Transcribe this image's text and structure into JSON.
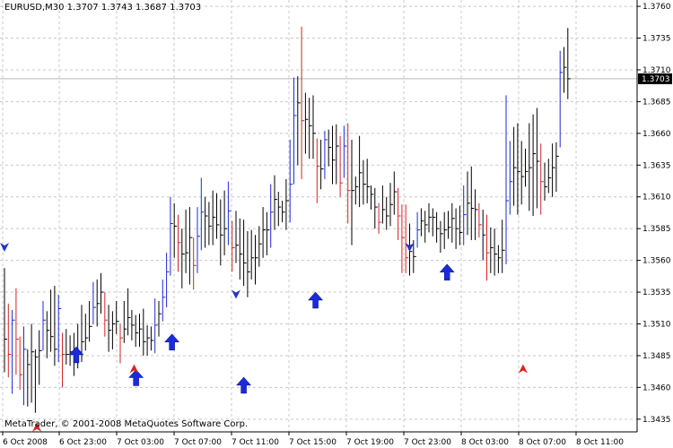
{
  "window": {
    "title": "EURUSD,M30  1.3707 1.3743 1.3687 1.3703",
    "copyright": "MetaTrader, © 2001-2008 MetaQuotes Software Corp."
  },
  "colors": {
    "background": "#ffffff",
    "grid": "#c8c8c8",
    "bar_default": "#000000",
    "bar_bull": "#1a2bd8",
    "bar_bear": "#d42424",
    "arrow_up_big": "#1a2bd8",
    "signal_blue": "#2233cc",
    "signal_red": "#dd2222",
    "price_line": "#b8b8b8",
    "price_tag_bg": "#000000",
    "price_tag_text": "#ffffff"
  },
  "chart_data": {
    "type": "ohlc",
    "symbol": "EURUSD",
    "timeframe": "M30",
    "ylim": [
      1.3425,
      1.3765
    ],
    "y_ticks": [
      "1.3760",
      "1.3735",
      "1.3710",
      "1.3685",
      "1.3660",
      "1.3635",
      "1.3610",
      "1.3585",
      "1.3560",
      "1.3535",
      "1.3510",
      "1.3485",
      "1.3460",
      "1.3435"
    ],
    "x_tick_labels": [
      "6 Oct 2008",
      "6 Oct 23:00",
      "7 Oct 03:00",
      "7 Oct 07:00",
      "7 Oct 11:00",
      "7 Oct 15:00",
      "7 Oct 19:00",
      "7 Oct 23:00",
      "8 Oct 03:00",
      "8 Oct 07:00",
      "8 Oct 11:00"
    ],
    "current_price": "1.3703",
    "bars": [
      {
        "h": 1.3554,
        "l": 1.3472,
        "c": 1.3498
      },
      {
        "h": 1.3526,
        "l": 1.3468,
        "c": 1.3486
      },
      {
        "h": 1.3521,
        "l": 1.3455,
        "c": 1.3513
      },
      {
        "h": 1.3538,
        "l": 1.347,
        "c": 1.3498
      },
      {
        "h": 1.35,
        "l": 1.3458,
        "c": 1.347
      },
      {
        "h": 1.3508,
        "l": 1.3446,
        "c": 1.349
      },
      {
        "h": 1.349,
        "l": 1.3445,
        "c": 1.3478
      },
      {
        "h": 1.351,
        "l": 1.3448,
        "c": 1.3488
      },
      {
        "h": 1.349,
        "l": 1.344,
        "c": 1.3484
      },
      {
        "h": 1.3505,
        "l": 1.3462,
        "c": 1.3489
      },
      {
        "h": 1.3528,
        "l": 1.3489,
        "c": 1.3513
      },
      {
        "h": 1.352,
        "l": 1.3483,
        "c": 1.3505
      },
      {
        "h": 1.3537,
        "l": 1.3488,
        "c": 1.35
      },
      {
        "h": 1.354,
        "l": 1.3477,
        "c": 1.349
      },
      {
        "h": 1.3533,
        "l": 1.348,
        "c": 1.3522
      },
      {
        "h": 1.3503,
        "l": 1.346,
        "c": 1.3486
      },
      {
        "h": 1.3506,
        "l": 1.3478,
        "c": 1.3486
      },
      {
        "h": 1.3501,
        "l": 1.3477,
        "c": 1.3488
      },
      {
        "h": 1.3503,
        "l": 1.3469,
        "c": 1.3489
      },
      {
        "h": 1.351,
        "l": 1.3475,
        "c": 1.3488
      },
      {
        "h": 1.3525,
        "l": 1.348,
        "c": 1.3496
      },
      {
        "h": 1.3518,
        "l": 1.3489,
        "c": 1.3499
      },
      {
        "h": 1.3528,
        "l": 1.3496,
        "c": 1.3508
      },
      {
        "h": 1.3543,
        "l": 1.351,
        "c": 1.3523
      },
      {
        "h": 1.3545,
        "l": 1.3508,
        "c": 1.3526
      },
      {
        "h": 1.355,
        "l": 1.3518,
        "c": 1.3535
      },
      {
        "h": 1.3535,
        "l": 1.35,
        "c": 1.3513
      },
      {
        "h": 1.3525,
        "l": 1.3488,
        "c": 1.3505
      },
      {
        "h": 1.352,
        "l": 1.349,
        "c": 1.351
      },
      {
        "h": 1.3528,
        "l": 1.3502,
        "c": 1.3512
      },
      {
        "h": 1.351,
        "l": 1.3479,
        "c": 1.3499
      },
      {
        "h": 1.3528,
        "l": 1.3495,
        "c": 1.3506
      },
      {
        "h": 1.3538,
        "l": 1.3501,
        "c": 1.3515
      },
      {
        "h": 1.3521,
        "l": 1.3497,
        "c": 1.3509
      },
      {
        "h": 1.3517,
        "l": 1.3492,
        "c": 1.3503
      },
      {
        "h": 1.3518,
        "l": 1.3492,
        "c": 1.3506
      },
      {
        "h": 1.3522,
        "l": 1.3485,
        "c": 1.3496
      },
      {
        "h": 1.3509,
        "l": 1.3485,
        "c": 1.3499
      },
      {
        "h": 1.3508,
        "l": 1.3489,
        "c": 1.3497
      },
      {
        "h": 1.353,
        "l": 1.3487,
        "c": 1.3509
      },
      {
        "h": 1.3528,
        "l": 1.35,
        "c": 1.3518
      },
      {
        "h": 1.3545,
        "l": 1.3512,
        "c": 1.3531
      },
      {
        "h": 1.3566,
        "l": 1.3523,
        "c": 1.3551
      },
      {
        "h": 1.361,
        "l": 1.3548,
        "c": 1.3589
      },
      {
        "h": 1.3605,
        "l": 1.3562,
        "c": 1.3587
      },
      {
        "h": 1.3596,
        "l": 1.3551,
        "c": 1.3574
      },
      {
        "h": 1.3585,
        "l": 1.3538,
        "c": 1.3565
      },
      {
        "h": 1.36,
        "l": 1.355,
        "c": 1.3566
      },
      {
        "h": 1.3602,
        "l": 1.3541,
        "c": 1.3578
      },
      {
        "h": 1.3578,
        "l": 1.3537,
        "c": 1.3556
      },
      {
        "h": 1.3602,
        "l": 1.355,
        "c": 1.3579
      },
      {
        "h": 1.3625,
        "l": 1.3568,
        "c": 1.3598
      },
      {
        "h": 1.361,
        "l": 1.357,
        "c": 1.3595
      },
      {
        "h": 1.3606,
        "l": 1.3572,
        "c": 1.3587
      },
      {
        "h": 1.3615,
        "l": 1.3572,
        "c": 1.3594
      },
      {
        "h": 1.3613,
        "l": 1.3577,
        "c": 1.3588
      },
      {
        "h": 1.3608,
        "l": 1.3556,
        "c": 1.358
      },
      {
        "h": 1.3615,
        "l": 1.3564,
        "c": 1.3585
      },
      {
        "h": 1.3622,
        "l": 1.3572,
        "c": 1.3599
      },
      {
        "h": 1.3591,
        "l": 1.3551,
        "c": 1.357
      },
      {
        "h": 1.3599,
        "l": 1.3558,
        "c": 1.3572
      },
      {
        "h": 1.3593,
        "l": 1.3545,
        "c": 1.3565
      },
      {
        "h": 1.3592,
        "l": 1.354,
        "c": 1.3558
      },
      {
        "h": 1.3583,
        "l": 1.3531,
        "c": 1.3551
      },
      {
        "h": 1.3584,
        "l": 1.3545,
        "c": 1.3562
      },
      {
        "h": 1.358,
        "l": 1.3541,
        "c": 1.3562
      },
      {
        "h": 1.3587,
        "l": 1.3555,
        "c": 1.3573
      },
      {
        "h": 1.3602,
        "l": 1.3562,
        "c": 1.3584
      },
      {
        "h": 1.3598,
        "l": 1.3564,
        "c": 1.3584
      },
      {
        "h": 1.362,
        "l": 1.357,
        "c": 1.3598
      },
      {
        "h": 1.3627,
        "l": 1.3584,
        "c": 1.3608
      },
      {
        "h": 1.3614,
        "l": 1.3587,
        "c": 1.3602
      },
      {
        "h": 1.3607,
        "l": 1.359,
        "c": 1.3598
      },
      {
        "h": 1.3624,
        "l": 1.3584,
        "c": 1.3607
      },
      {
        "h": 1.3655,
        "l": 1.359,
        "c": 1.362
      },
      {
        "h": 1.3704,
        "l": 1.362,
        "c": 1.3674
      },
      {
        "h": 1.3705,
        "l": 1.3635,
        "c": 1.3684
      },
      {
        "h": 1.3744,
        "l": 1.3624,
        "c": 1.367
      },
      {
        "h": 1.3692,
        "l": 1.3644,
        "c": 1.3671
      },
      {
        "h": 1.3688,
        "l": 1.364,
        "c": 1.3666
      },
      {
        "h": 1.369,
        "l": 1.364,
        "c": 1.366
      },
      {
        "h": 1.3656,
        "l": 1.3605,
        "c": 1.3634
      },
      {
        "h": 1.3655,
        "l": 1.3616,
        "c": 1.3632
      },
      {
        "h": 1.3662,
        "l": 1.3624,
        "c": 1.3655
      },
      {
        "h": 1.3663,
        "l": 1.3634,
        "c": 1.3649
      },
      {
        "h": 1.3666,
        "l": 1.362,
        "c": 1.3639
      },
      {
        "h": 1.3667,
        "l": 1.362,
        "c": 1.365
      },
      {
        "h": 1.3658,
        "l": 1.361,
        "c": 1.3621
      },
      {
        "h": 1.3666,
        "l": 1.3625,
        "c": 1.365
      },
      {
        "h": 1.3668,
        "l": 1.3589,
        "c": 1.3615
      },
      {
        "h": 1.3655,
        "l": 1.3572,
        "c": 1.3615
      },
      {
        "h": 1.3626,
        "l": 1.3604,
        "c": 1.3618
      },
      {
        "h": 1.3658,
        "l": 1.3602,
        "c": 1.3629
      },
      {
        "h": 1.3639,
        "l": 1.3604,
        "c": 1.362
      },
      {
        "h": 1.364,
        "l": 1.3605,
        "c": 1.3618
      },
      {
        "h": 1.3619,
        "l": 1.36,
        "c": 1.3612
      },
      {
        "h": 1.3617,
        "l": 1.3585,
        "c": 1.3602
      },
      {
        "h": 1.3605,
        "l": 1.3581,
        "c": 1.359
      },
      {
        "h": 1.3619,
        "l": 1.3589,
        "c": 1.36
      },
      {
        "h": 1.361,
        "l": 1.3584,
        "c": 1.3595
      },
      {
        "h": 1.3621,
        "l": 1.3587,
        "c": 1.3604
      },
      {
        "h": 1.363,
        "l": 1.3596,
        "c": 1.3614
      },
      {
        "h": 1.3617,
        "l": 1.3576,
        "c": 1.3595
      },
      {
        "h": 1.3604,
        "l": 1.355,
        "c": 1.3578
      },
      {
        "h": 1.3604,
        "l": 1.355,
        "c": 1.3562
      },
      {
        "h": 1.3589,
        "l": 1.3548,
        "c": 1.3567
      },
      {
        "h": 1.3576,
        "l": 1.355,
        "c": 1.3563
      },
      {
        "h": 1.3598,
        "l": 1.357,
        "c": 1.3584
      },
      {
        "h": 1.3601,
        "l": 1.3579,
        "c": 1.3591
      },
      {
        "h": 1.3599,
        "l": 1.3574,
        "c": 1.3588
      },
      {
        "h": 1.3605,
        "l": 1.3582,
        "c": 1.3594
      },
      {
        "h": 1.3601,
        "l": 1.3579,
        "c": 1.3594
      },
      {
        "h": 1.3598,
        "l": 1.3574,
        "c": 1.3585
      },
      {
        "h": 1.3591,
        "l": 1.3566,
        "c": 1.3581
      },
      {
        "h": 1.3598,
        "l": 1.3569,
        "c": 1.3584
      },
      {
        "h": 1.3599,
        "l": 1.3577,
        "c": 1.3586
      },
      {
        "h": 1.3605,
        "l": 1.3574,
        "c": 1.3593
      },
      {
        "h": 1.3601,
        "l": 1.3569,
        "c": 1.3585
      },
      {
        "h": 1.3603,
        "l": 1.3572,
        "c": 1.3582
      },
      {
        "h": 1.3619,
        "l": 1.3572,
        "c": 1.3596
      },
      {
        "h": 1.363,
        "l": 1.358,
        "c": 1.3605
      },
      {
        "h": 1.3634,
        "l": 1.3576,
        "c": 1.3601
      },
      {
        "h": 1.3616,
        "l": 1.3576,
        "c": 1.36
      },
      {
        "h": 1.3605,
        "l": 1.3578,
        "c": 1.3588
      },
      {
        "h": 1.36,
        "l": 1.356,
        "c": 1.358
      },
      {
        "h": 1.3596,
        "l": 1.3544,
        "c": 1.3566
      },
      {
        "h": 1.3586,
        "l": 1.355,
        "c": 1.357
      },
      {
        "h": 1.3585,
        "l": 1.3548,
        "c": 1.3565
      },
      {
        "h": 1.3572,
        "l": 1.355,
        "c": 1.3562
      },
      {
        "h": 1.3592,
        "l": 1.355,
        "c": 1.3568
      },
      {
        "h": 1.369,
        "l": 1.3557,
        "c": 1.3607
      },
      {
        "h": 1.3654,
        "l": 1.3596,
        "c": 1.3622
      },
      {
        "h": 1.3665,
        "l": 1.3603,
        "c": 1.3633
      },
      {
        "h": 1.3668,
        "l": 1.3596,
        "c": 1.363
      },
      {
        "h": 1.3654,
        "l": 1.3604,
        "c": 1.3626
      },
      {
        "h": 1.3648,
        "l": 1.3618,
        "c": 1.363
      },
      {
        "h": 1.3668,
        "l": 1.3599,
        "c": 1.3633
      },
      {
        "h": 1.3675,
        "l": 1.3595,
        "c": 1.3644
      },
      {
        "h": 1.368,
        "l": 1.3601,
        "c": 1.3638
      },
      {
        "h": 1.3652,
        "l": 1.3596,
        "c": 1.3622
      },
      {
        "h": 1.3637,
        "l": 1.3607,
        "c": 1.3618
      },
      {
        "h": 1.364,
        "l": 1.3613,
        "c": 1.3625
      },
      {
        "h": 1.3652,
        "l": 1.361,
        "c": 1.3633
      },
      {
        "h": 1.3653,
        "l": 1.3614,
        "c": 1.3642
      },
      {
        "h": 1.3725,
        "l": 1.3649,
        "c": 1.3708
      },
      {
        "h": 1.3728,
        "l": 1.3692,
        "c": 1.3712
      },
      {
        "h": 1.3743,
        "l": 1.3687,
        "c": 1.3703
      }
    ],
    "up_signals_big": [
      {
        "bar": 6,
        "price": 1.3485
      },
      {
        "bar": 11,
        "price": 1.3467
      },
      {
        "bar": 14,
        "price": 1.3495
      },
      {
        "bar": 20,
        "price": 1.3461
      },
      {
        "bar": 26,
        "price": 1.3528
      },
      {
        "bar": 37,
        "price": 1.355
      },
      {
        "bar": 77,
        "price": 1.3541
      }
    ],
    "buy_markers": [
      {
        "bar": 1,
        "price": 1.3428
      },
      {
        "bar": 4,
        "price": 1.3474
      },
      {
        "bar": 16,
        "price": 1.3474
      },
      {
        "bar": 25,
        "price": 1.3551
      },
      {
        "bar": 31,
        "price": 1.3555
      },
      {
        "bar": 32,
        "price": 1.356
      },
      {
        "bar": 36,
        "price": 1.3583
      },
      {
        "bar": 50,
        "price": 1.3592
      },
      {
        "bar": 56,
        "price": 1.3589
      },
      {
        "bar": 60,
        "price": 1.3553
      },
      {
        "bar": 66,
        "price": 1.3578
      },
      {
        "bar": 81,
        "price": 1.3603
      }
    ],
    "sell_markers": [
      {
        "bar": 0,
        "price": 1.3571
      },
      {
        "bar": 8,
        "price": 1.3534
      },
      {
        "bar": 14,
        "price": 1.3571
      },
      {
        "bar": 25,
        "price": 1.3617
      },
      {
        "bar": 28,
        "price": 1.3609
      },
      {
        "bar": 28,
        "price": 1.3615
      },
      {
        "bar": 28,
        "price": 1.364
      },
      {
        "bar": 38,
        "price": 1.3664
      },
      {
        "bar": 43,
        "price": 1.3709
      },
      {
        "bar": 53,
        "price": 1.3654
      },
      {
        "bar": 58,
        "price": 1.3642
      },
      {
        "bar": 66,
        "price": 1.3617
      },
      {
        "bar": 72,
        "price": 1.3642
      },
      {
        "bar": 81,
        "price": 1.3686
      }
    ]
  }
}
